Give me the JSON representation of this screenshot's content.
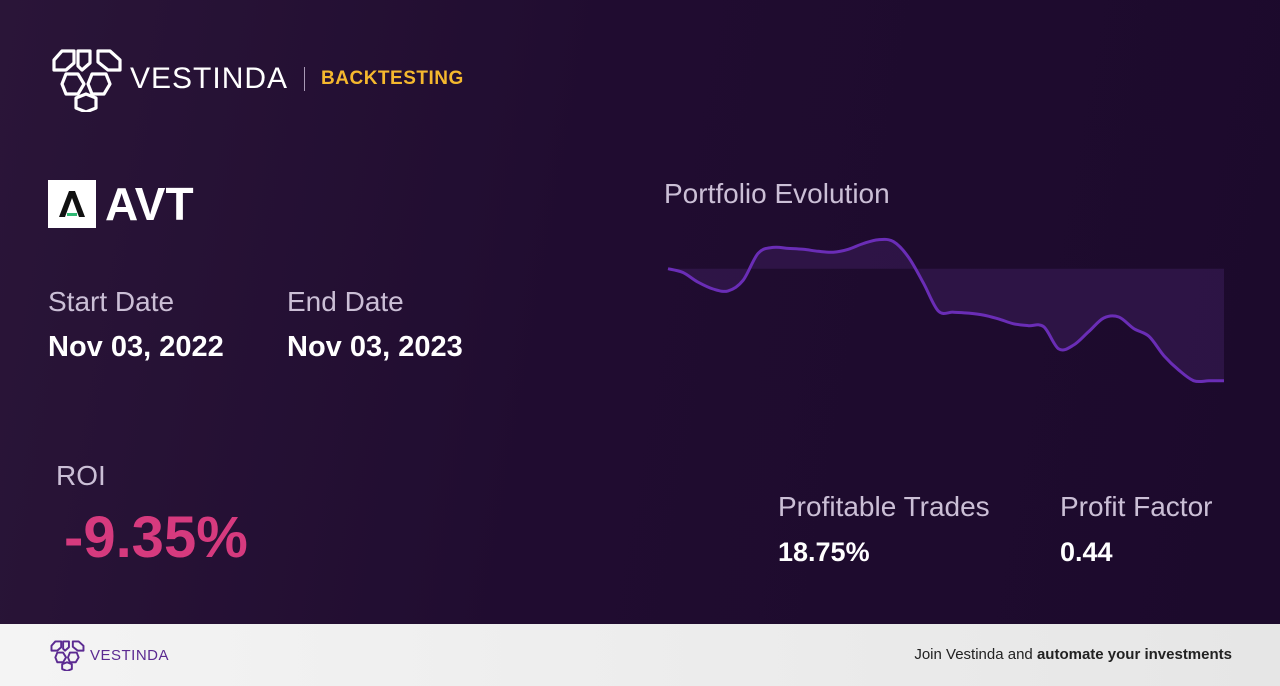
{
  "brand": {
    "name": "VESTINDA",
    "tag": "BACKTESTING"
  },
  "ticker": {
    "symbol": "AVT"
  },
  "dates": {
    "start_label": "Start Date",
    "start_value": "Nov 03, 2022",
    "end_label": "End Date",
    "end_value": "Nov 03, 2023"
  },
  "roi": {
    "label": "ROI",
    "value": "-9.35%"
  },
  "stats": {
    "profitable_trades_label": "Profitable Trades",
    "profitable_trades_value": "18.75%",
    "profit_factor_label": "Profit Factor",
    "profit_factor_value": "0.44"
  },
  "chart_data": {
    "type": "line",
    "title": "Portfolio Evolution",
    "baseline": 0,
    "ylim": [
      -14,
      4
    ],
    "values": [
      0,
      -0.4,
      -1.4,
      -2.1,
      -2.3,
      -1.2,
      1.6,
      2.2,
      2.1,
      2.0,
      1.8,
      1.7,
      2.0,
      2.6,
      3.0,
      2.8,
      1.2,
      -1.5,
      -4.4,
      -4.5,
      -4.6,
      -4.8,
      -5.2,
      -5.7,
      -5.9,
      -6.0,
      -8.3,
      -7.9,
      -6.5,
      -5.1,
      -5.0,
      -6.2,
      -7.0,
      -9.0,
      -10.5,
      -11.6,
      -11.6,
      -11.6
    ],
    "colors": {
      "line": "#6a2db6",
      "fill": "#3a1d59"
    }
  },
  "footer": {
    "brand_name": "VESTINDA",
    "cta_prefix": "Join Vestinda and ",
    "cta_bold": "automate your investments"
  }
}
